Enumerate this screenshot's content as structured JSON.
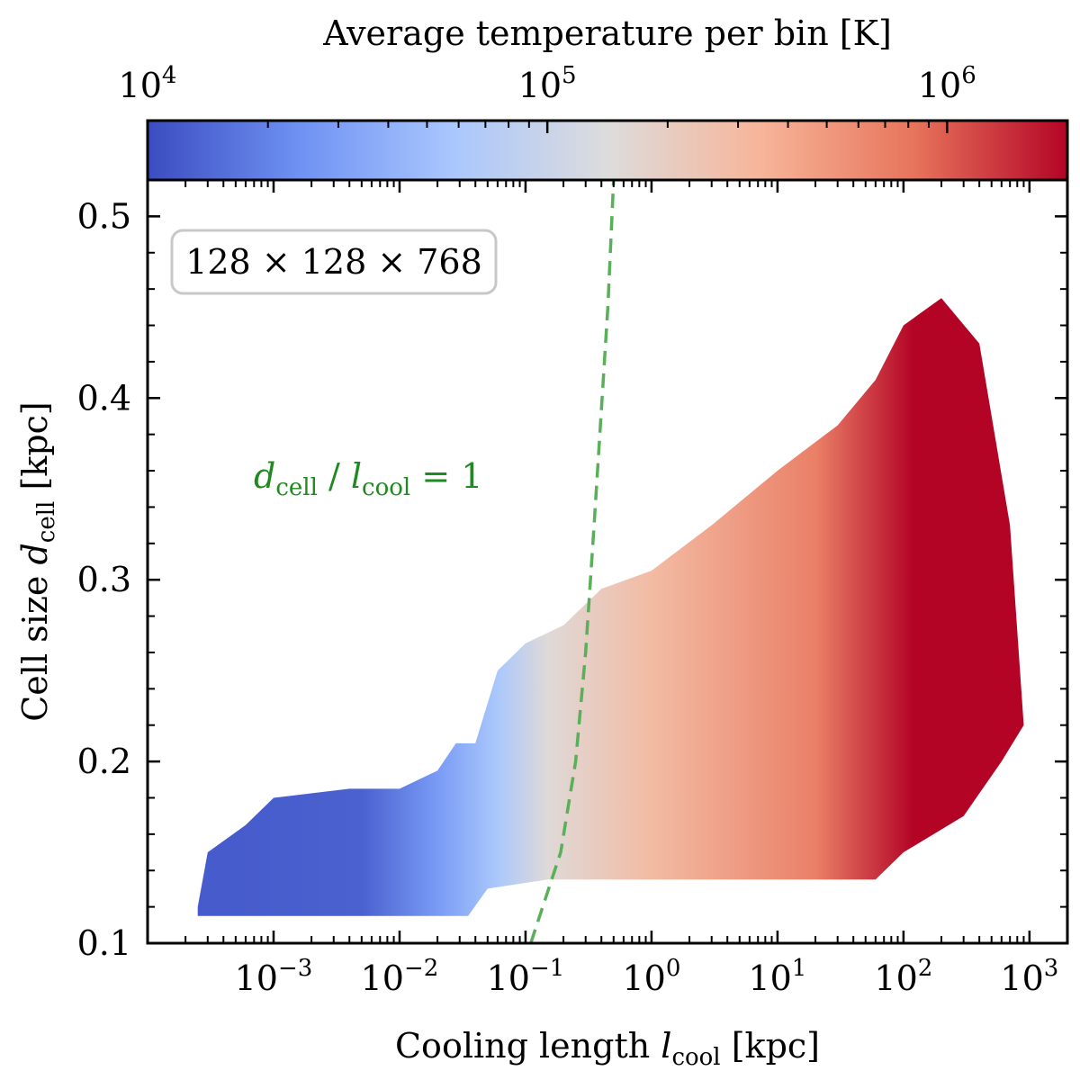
{
  "chart_data": {
    "type": "heatmap",
    "colorbar": {
      "label": "Average temperature per bin [K]",
      "scale": "log",
      "range": [
        10000,
        2000000
      ],
      "ticks": [
        {
          "value": 10000,
          "label": "10",
          "exp": "4"
        },
        {
          "value": 100000,
          "label": "10",
          "exp": "5"
        },
        {
          "value": 1000000,
          "label": "10",
          "exp": "6"
        }
      ],
      "colors": [
        "#3b4cc0",
        "#6f92f3",
        "#aac7fd",
        "#dddcdc",
        "#f7b599",
        "#e7745b",
        "#b40426"
      ]
    },
    "xaxis": {
      "label": "Cooling length",
      "symbol": "l",
      "subscript": "cool",
      "unit": "[kpc]",
      "scale": "log",
      "range": [
        0.0001,
        2000
      ],
      "ticks": [
        {
          "value": 0.001,
          "base": "10",
          "exp": "−3"
        },
        {
          "value": 0.01,
          "base": "10",
          "exp": "−2"
        },
        {
          "value": 0.1,
          "base": "10",
          "exp": "−1"
        },
        {
          "value": 1,
          "base": "10",
          "exp": "0"
        },
        {
          "value": 10,
          "base": "10",
          "exp": "1"
        },
        {
          "value": 100,
          "base": "10",
          "exp": "2"
        },
        {
          "value": 1000,
          "base": "10",
          "exp": "3"
        }
      ]
    },
    "yaxis": {
      "label": "Cell size",
      "symbol": "d",
      "subscript": "cell",
      "unit": "[kpc]",
      "scale": "linear",
      "range": [
        0.1,
        0.52
      ],
      "ticks": [
        {
          "value": 0.1,
          "label": "0.1"
        },
        {
          "value": 0.2,
          "label": "0.2"
        },
        {
          "value": 0.3,
          "label": "0.3"
        },
        {
          "value": 0.4,
          "label": "0.4"
        },
        {
          "value": 0.5,
          "label": "0.5"
        }
      ]
    },
    "resolution_label": "128 × 128 × 768",
    "reference_line": {
      "label_d": "d",
      "label_d_sub": "cell",
      "label_slash": " / ",
      "label_l": "l",
      "label_l_sub": "cool",
      "label_eq": " = 1",
      "style": "dashed",
      "color": "#5ab05a",
      "points": [
        {
          "x": 0.11,
          "y": 0.1
        },
        {
          "x": 0.19,
          "y": 0.15
        },
        {
          "x": 0.25,
          "y": 0.2
        },
        {
          "x": 0.3,
          "y": 0.26
        },
        {
          "x": 0.35,
          "y": 0.33
        },
        {
          "x": 0.45,
          "y": 0.45
        },
        {
          "x": 0.5,
          "y": 0.52
        }
      ]
    },
    "distribution": {
      "description_values": "temperature rises with cooling length",
      "upper_envelope": [
        {
          "x": 0.00025,
          "y": 0.12
        },
        {
          "x": 0.0003,
          "y": 0.15
        },
        {
          "x": 0.0006,
          "y": 0.165
        },
        {
          "x": 0.001,
          "y": 0.18
        },
        {
          "x": 0.004,
          "y": 0.185
        },
        {
          "x": 0.01,
          "y": 0.185
        },
        {
          "x": 0.02,
          "y": 0.195
        },
        {
          "x": 0.028,
          "y": 0.21
        },
        {
          "x": 0.04,
          "y": 0.21
        },
        {
          "x": 0.06,
          "y": 0.25
        },
        {
          "x": 0.1,
          "y": 0.265
        },
        {
          "x": 0.2,
          "y": 0.275
        },
        {
          "x": 0.4,
          "y": 0.295
        },
        {
          "x": 1,
          "y": 0.305
        },
        {
          "x": 3,
          "y": 0.33
        },
        {
          "x": 10,
          "y": 0.36
        },
        {
          "x": 30,
          "y": 0.385
        },
        {
          "x": 60,
          "y": 0.41
        },
        {
          "x": 100,
          "y": 0.44
        },
        {
          "x": 200,
          "y": 0.455
        },
        {
          "x": 400,
          "y": 0.43
        },
        {
          "x": 700,
          "y": 0.33
        },
        {
          "x": 900,
          "y": 0.22
        }
      ],
      "lower_envelope": [
        {
          "x": 900,
          "y": 0.22
        },
        {
          "x": 600,
          "y": 0.2
        },
        {
          "x": 300,
          "y": 0.17
        },
        {
          "x": 100,
          "y": 0.15
        },
        {
          "x": 60,
          "y": 0.135
        },
        {
          "x": 20,
          "y": 0.135
        },
        {
          "x": 1,
          "y": 0.135
        },
        {
          "x": 0.15,
          "y": 0.135
        },
        {
          "x": 0.05,
          "y": 0.13
        },
        {
          "x": 0.035,
          "y": 0.115
        },
        {
          "x": 0.01,
          "y": 0.115
        },
        {
          "x": 0.001,
          "y": 0.115
        },
        {
          "x": 0.00025,
          "y": 0.115
        }
      ],
      "temperature_gradient": [
        {
          "x": 0.0002,
          "t": 12000
        },
        {
          "x": 0.005,
          "t": 13000
        },
        {
          "x": 0.02,
          "t": 28000
        },
        {
          "x": 0.06,
          "t": 60000
        },
        {
          "x": 0.15,
          "t": 150000
        },
        {
          "x": 1,
          "t": 300000
        },
        {
          "x": 20,
          "t": 700000
        },
        {
          "x": 120,
          "t": 2000000
        },
        {
          "x": 1000,
          "t": 2000000
        }
      ]
    }
  }
}
